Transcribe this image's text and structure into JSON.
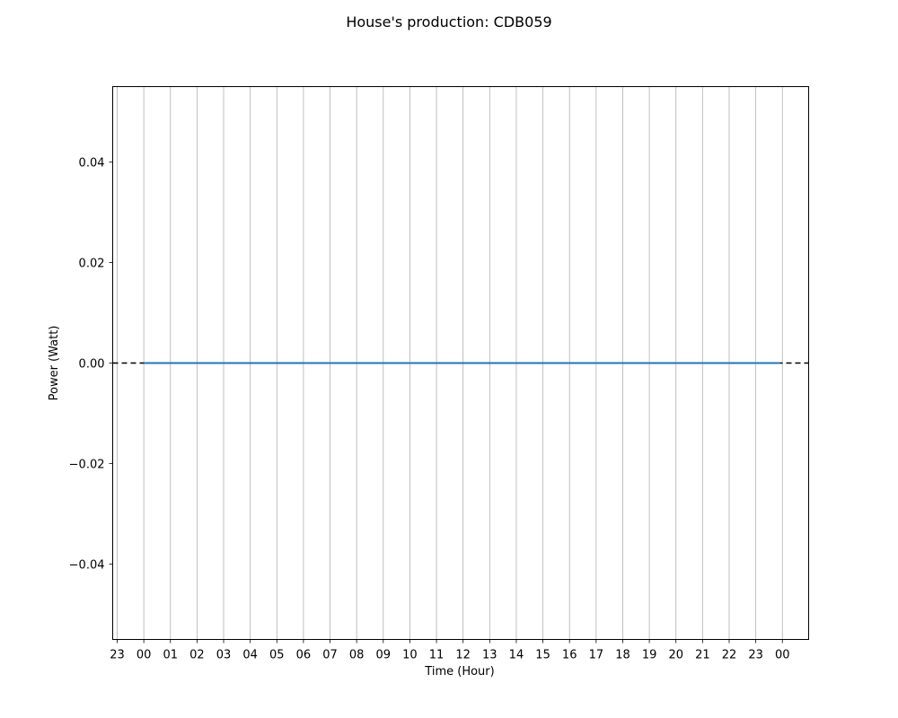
{
  "chart_data": {
    "type": "line",
    "title": "House's production: CDB059",
    "xlabel": "Time (Hour)",
    "ylabel": "Power (Watt)",
    "x_ticks": [
      "23",
      "00",
      "01",
      "02",
      "03",
      "04",
      "05",
      "06",
      "07",
      "08",
      "09",
      "10",
      "11",
      "12",
      "13",
      "14",
      "15",
      "16",
      "17",
      "18",
      "19",
      "20",
      "21",
      "22",
      "23",
      "00"
    ],
    "y_ticks": [
      "0.04",
      "0.02",
      "0.00",
      "−0.02",
      "−0.04"
    ],
    "ylim": [
      -0.055,
      0.055
    ],
    "grid": "vertical",
    "series": [
      {
        "color": "#1f77b4",
        "x": [
          "00",
          "01",
          "02",
          "03",
          "04",
          "05",
          "06",
          "07",
          "08",
          "09",
          "10",
          "11",
          "12",
          "13",
          "14",
          "15",
          "16",
          "17",
          "18",
          "19",
          "20",
          "21",
          "22",
          "23",
          "23:55"
        ],
        "values": [
          0,
          0,
          0,
          0,
          0,
          0,
          0,
          0,
          0,
          0,
          0,
          0,
          0,
          0,
          0,
          0,
          0,
          0,
          0,
          0,
          0,
          0,
          0,
          0,
          0
        ]
      }
    ],
    "reference_line": {
      "y": 0,
      "style": "dashed",
      "color": "#000000"
    }
  }
}
